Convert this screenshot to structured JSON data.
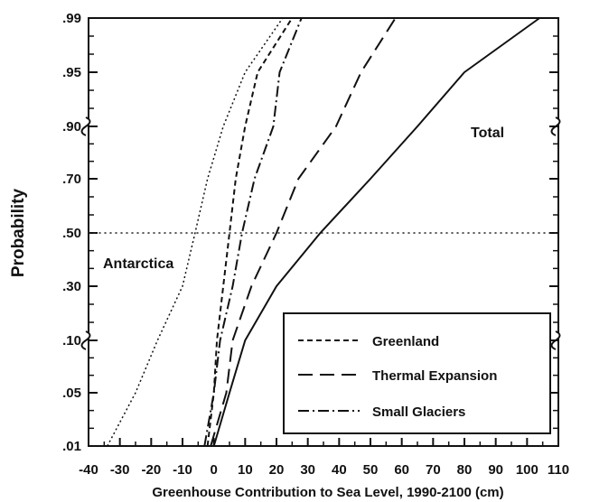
{
  "chart_data": {
    "type": "line",
    "xlabel": "Greenhouse Contribution to Sea Level, 1990-2100 (cm)",
    "ylabel": "Probability",
    "xlim": [
      -40,
      110
    ],
    "x_ticks": [
      -40,
      -30,
      -20,
      -10,
      0,
      10,
      20,
      30,
      40,
      50,
      60,
      70,
      80,
      90,
      100,
      110
    ],
    "x_tick_labels": [
      "-40",
      "-30",
      "-20",
      "-10",
      "0",
      "10",
      "20",
      "30",
      "40",
      "50",
      "60",
      "70",
      "80",
      "90",
      "100",
      "110"
    ],
    "y_scale": "probability",
    "y_ticks": [
      0.01,
      0.05,
      0.1,
      0.3,
      0.5,
      0.7,
      0.9,
      0.95,
      0.99
    ],
    "y_tick_labels": [
      ".01",
      ".05",
      ".10",
      ".30",
      ".50",
      ".70",
      ".90",
      ".95",
      ".99"
    ],
    "reference_line_y": 0.5,
    "grid": false,
    "legend_position": "bottom-right",
    "annotations": [
      {
        "text": "Antarctica",
        "x": -35,
        "y": 0.4
      },
      {
        "text": "Total",
        "x": 87,
        "y": 0.9
      }
    ],
    "series": [
      {
        "name": "Greenland",
        "style": "dashed",
        "points": [
          [
            -2,
            0.01
          ],
          [
            0,
            0.05
          ],
          [
            1,
            0.1
          ],
          [
            3,
            0.3
          ],
          [
            5,
            0.5
          ],
          [
            7,
            0.7
          ],
          [
            10,
            0.9
          ],
          [
            14,
            0.95
          ],
          [
            25,
            0.99
          ]
        ]
      },
      {
        "name": "Thermal Expansion",
        "style": "long-dashed",
        "points": [
          [
            -1,
            0.01
          ],
          [
            4,
            0.05
          ],
          [
            6,
            0.1
          ],
          [
            12,
            0.3
          ],
          [
            20,
            0.5
          ],
          [
            27,
            0.7
          ],
          [
            39,
            0.9
          ],
          [
            47,
            0.95
          ],
          [
            58,
            0.99
          ]
        ]
      },
      {
        "name": "Small Glaciers",
        "style": "dash-dot",
        "points": [
          [
            -3,
            0.01
          ],
          [
            0,
            0.05
          ],
          [
            2,
            0.1
          ],
          [
            6,
            0.3
          ],
          [
            9,
            0.5
          ],
          [
            13,
            0.7
          ],
          [
            19,
            0.9
          ],
          [
            21,
            0.95
          ],
          [
            28,
            0.99
          ]
        ]
      },
      {
        "name": "Antarctica",
        "style": "dotted",
        "points": [
          [
            -34,
            0.01
          ],
          [
            -25,
            0.05
          ],
          [
            -18,
            0.1
          ],
          [
            -10,
            0.3
          ],
          [
            -6,
            0.5
          ],
          [
            -2,
            0.7
          ],
          [
            3,
            0.9
          ],
          [
            10,
            0.95
          ],
          [
            22,
            0.99
          ]
        ]
      },
      {
        "name": "Total",
        "style": "solid",
        "points": [
          [
            0,
            0.01
          ],
          [
            5,
            0.05
          ],
          [
            10,
            0.1
          ],
          [
            20,
            0.3
          ],
          [
            34,
            0.5
          ],
          [
            50,
            0.7
          ],
          [
            65,
            0.9
          ],
          [
            80,
            0.95
          ],
          [
            104,
            0.99
          ]
        ]
      }
    ]
  }
}
